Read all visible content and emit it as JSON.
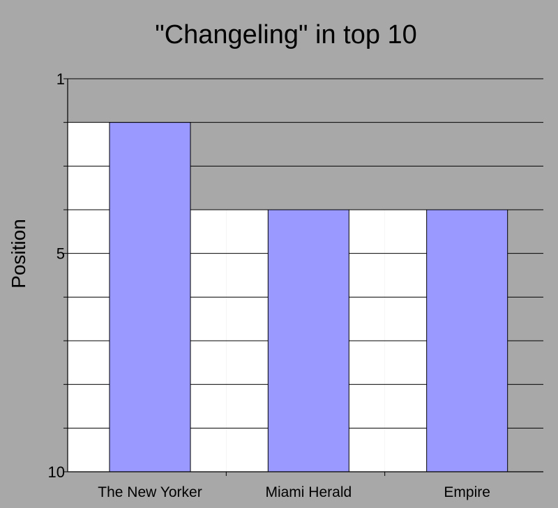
{
  "chart_data": {
    "type": "bar",
    "title": "\"Changeling\" in top 10",
    "xlabel": "",
    "ylabel": "Position",
    "categories": [
      "The New Yorker",
      "Miami Herald",
      "Empire"
    ],
    "values": [
      2,
      4,
      4
    ],
    "yticks": [
      "1",
      "5",
      "10"
    ],
    "ylim": [
      1,
      10
    ],
    "inverted_y": true,
    "grid": true,
    "colors": {
      "background": "#a8a8a8",
      "bar_fill": "#9999ff",
      "column_bg": "#ffffff",
      "gridline": "#000000",
      "axis": "#000000"
    }
  }
}
